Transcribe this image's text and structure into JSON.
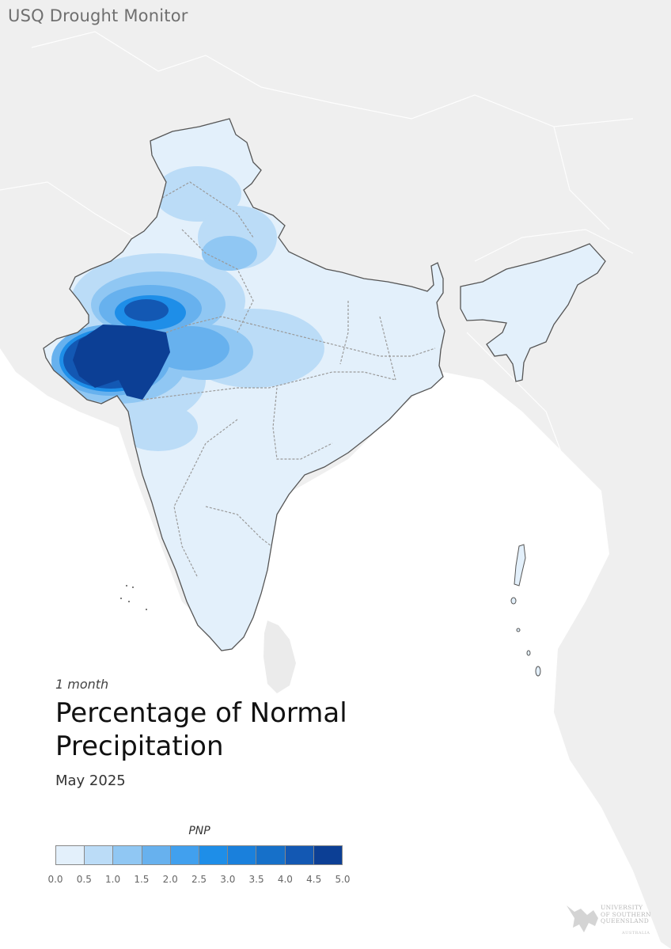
{
  "app": {
    "title": "USQ Drought Monitor"
  },
  "map": {
    "period": "1 month",
    "title": "Percentage of Normal Precipitation",
    "date": "May 2025"
  },
  "legend": {
    "label": "PNP",
    "ticks": [
      "0.0",
      "0.5",
      "1.0",
      "1.5",
      "2.0",
      "2.5",
      "3.0",
      "3.5",
      "4.0",
      "4.5",
      "5.0"
    ],
    "colors": [
      "#e3f0fb",
      "#bbdcf7",
      "#90c7f3",
      "#67b1ee",
      "#41a0ee",
      "#1e8ee8",
      "#1a80dc",
      "#1670c9",
      "#1358b3",
      "#0c3f95"
    ]
  },
  "colors": {
    "land_background": "#efefef",
    "sea": "#ffffff",
    "india_base": "#e3f0fb",
    "boundary": "#555555",
    "state_boundary": "#9a9a9a"
  },
  "logo": {
    "name": "University of Southern Queensland",
    "text_lines": [
      "UNIVERSITY",
      "OF SOUTHERN",
      "QUEENSLAND"
    ],
    "sub": "AUSTRALIA"
  }
}
